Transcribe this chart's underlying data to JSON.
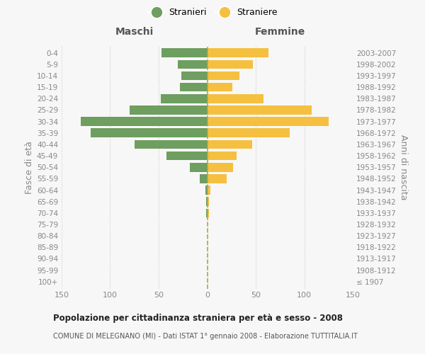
{
  "age_groups": [
    "100+",
    "95-99",
    "90-94",
    "85-89",
    "80-84",
    "75-79",
    "70-74",
    "65-69",
    "60-64",
    "55-59",
    "50-54",
    "45-49",
    "40-44",
    "35-39",
    "30-34",
    "25-29",
    "20-24",
    "15-19",
    "10-14",
    "5-9",
    "0-4"
  ],
  "birth_years": [
    "≤ 1907",
    "1908-1912",
    "1913-1917",
    "1918-1922",
    "1923-1927",
    "1928-1932",
    "1933-1937",
    "1938-1942",
    "1943-1947",
    "1948-1952",
    "1953-1957",
    "1958-1962",
    "1963-1967",
    "1968-1972",
    "1973-1977",
    "1978-1982",
    "1983-1987",
    "1988-1992",
    "1993-1997",
    "1998-2002",
    "2003-2007"
  ],
  "males": [
    0,
    0,
    0,
    0,
    0,
    0,
    1,
    1,
    2,
    8,
    18,
    42,
    75,
    120,
    130,
    80,
    48,
    28,
    27,
    30,
    47
  ],
  "females": [
    0,
    0,
    0,
    0,
    0,
    0,
    2,
    2,
    3,
    20,
    27,
    30,
    46,
    85,
    125,
    108,
    58,
    26,
    33,
    47,
    63
  ],
  "male_color": "#6e9e60",
  "female_color": "#f5c040",
  "title": "Popolazione per cittadinanza straniera per età e sesso - 2008",
  "subtitle": "COMUNE DI MELEGNANO (MI) - Dati ISTAT 1° gennaio 2008 - Elaborazione TUTTITALIA.IT",
  "header_left": "Maschi",
  "header_right": "Femmine",
  "ylabel_left": "Fasce di età",
  "ylabel_right": "Anni di nascita",
  "legend_male": "Stranieri",
  "legend_female": "Straniere",
  "xlim": 150,
  "background_color": "#f7f7f7",
  "grid_color": "#cccccc"
}
